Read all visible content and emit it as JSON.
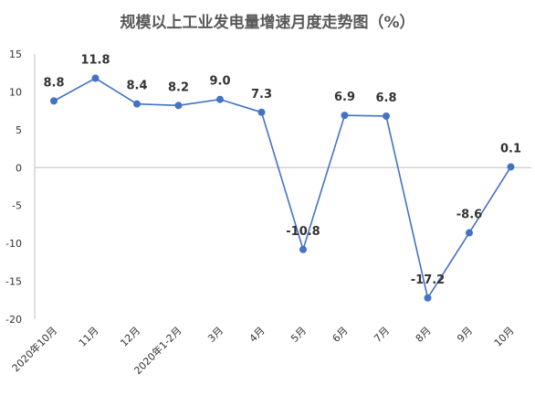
{
  "chart_data": {
    "type": "line",
    "title": "规模以上工业发电量增速月度走势图（%）",
    "xlabel": "",
    "ylabel": "",
    "categories": [
      "2020年10月",
      "11月",
      "12月",
      "2020年1-2月",
      "3月",
      "4月",
      "5月",
      "6月",
      "7月",
      "8月",
      "9月",
      "10月"
    ],
    "series": [
      {
        "values": [
          8.8,
          11.8,
          8.4,
          8.2,
          9.0,
          7.3,
          -10.8,
          6.9,
          6.8,
          -17.2,
          -8.6,
          0.1
        ]
      }
    ],
    "data_labels": [
      "8.8",
      "11.8",
      "8.4",
      "8.2",
      "9.0",
      "7.3",
      "-10.8",
      "6.9",
      "6.8",
      "-17.2",
      "-8.6",
      "0.1"
    ],
    "ylim": [
      -20,
      15
    ],
    "yticks": [
      15,
      10,
      5,
      0,
      -5,
      -10,
      -15,
      -20
    ],
    "ytick_labels": [
      "15",
      "10",
      "5",
      "0",
      "-5",
      "-10",
      "-15",
      "-20"
    ],
    "grid": false,
    "legend": "none",
    "colors": {
      "series": "#4472c4",
      "axis": "#bfbfbf",
      "text": "#333333",
      "title": "#595959"
    }
  }
}
